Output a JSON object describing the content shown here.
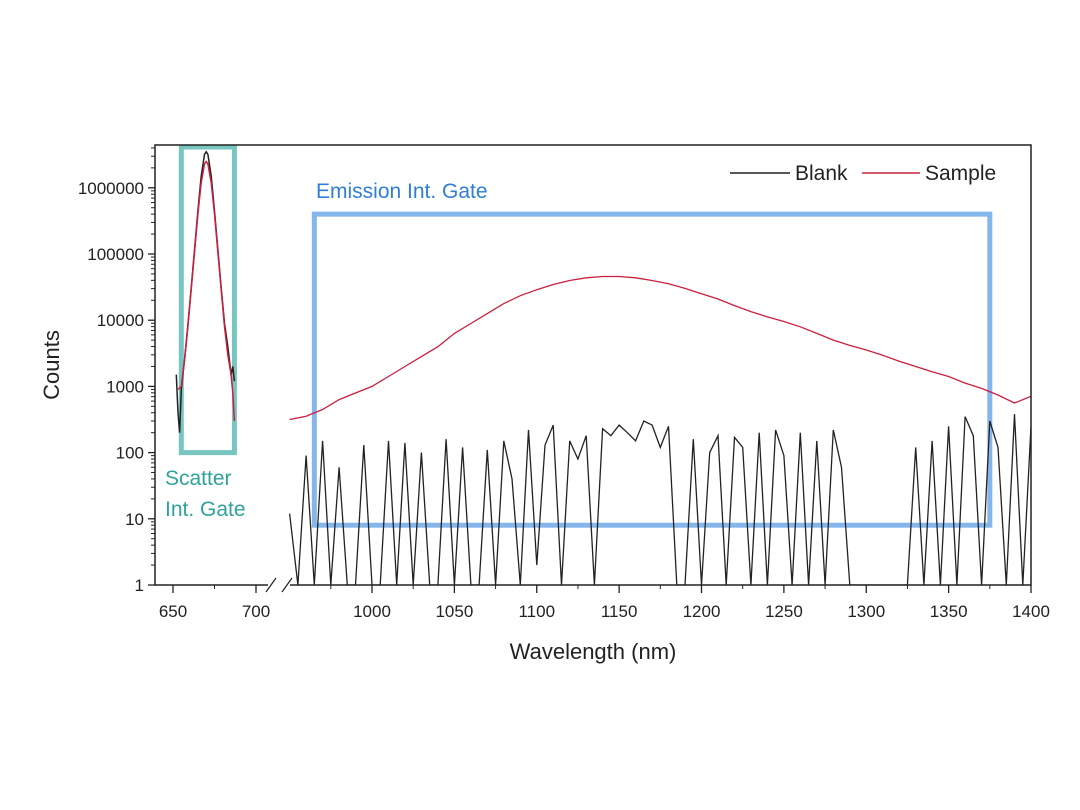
{
  "chart_data": {
    "type": "line",
    "title": "",
    "xlabel": "Wavelength (nm)",
    "ylabel": "Counts",
    "yscale": "log",
    "ylim": [
      1,
      4400000
    ],
    "x_segments": [
      [
        639,
        711
      ],
      [
        949,
        1400
      ]
    ],
    "x_ticks_left": [
      "650",
      "700"
    ],
    "x_ticks_right": [
      "1000",
      "1050",
      "1100",
      "1150",
      "1200",
      "1250",
      "1300",
      "1350",
      "1400"
    ],
    "y_ticks": [
      "1",
      "10",
      "100",
      "1000",
      "10000",
      "100000",
      "1000000"
    ],
    "legend": {
      "placement": "top-right",
      "entries": [
        "Blank",
        "Sample"
      ]
    },
    "colors": {
      "Blank": "#222222",
      "Sample": "#cc1f3f",
      "scatter_gate": "#5fbcb4",
      "emission_gate": "#5b9ee6",
      "scatter_text": "#2fa39a",
      "emission_text": "#2f7fd6"
    },
    "annotations": [
      {
        "label_lines": [
          "Scatter",
          "Int. Gate"
        ],
        "x_range": [
          655,
          687
        ],
        "y_range": [
          100,
          4400000
        ]
      },
      {
        "label_lines": [
          "Emission Int. Gate"
        ],
        "x_range": [
          965,
          1375
        ],
        "y_range": [
          8,
          400000
        ]
      }
    ],
    "series": [
      {
        "name": "Blank",
        "scatter_x": [
          652,
          653,
          654,
          655,
          657,
          659,
          661,
          663,
          665,
          667,
          669,
          670,
          671,
          673,
          675,
          677,
          679,
          681,
          683,
          684,
          685,
          686,
          687
        ],
        "scatter_y": [
          1500,
          400,
          200,
          900,
          2600,
          8500,
          32000,
          120000,
          450000,
          1500000,
          3200000,
          3500000,
          3200000,
          1500000,
          450000,
          120000,
          32000,
          9000,
          4000,
          2500,
          1500,
          2000,
          1200
        ],
        "emission_x_start": 950,
        "emission_x_step": 5,
        "emission_y": [
          12,
          1,
          90,
          1,
          150,
          1,
          60,
          1,
          1,
          130,
          1,
          1,
          150,
          1,
          140,
          1,
          100,
          1,
          1,
          160,
          1,
          120,
          1,
          1,
          110,
          1,
          150,
          40,
          1,
          220,
          2,
          130,
          260,
          1,
          150,
          80,
          180,
          1,
          230,
          180,
          260,
          200,
          150,
          300,
          260,
          120,
          250,
          1,
          1,
          160,
          1,
          100,
          180,
          1,
          170,
          120,
          1,
          200,
          1,
          220,
          90,
          1,
          200,
          1,
          150,
          1,
          220,
          60,
          1,
          1,
          1,
          1,
          1,
          1,
          1,
          1,
          120,
          1,
          150,
          1,
          250,
          1,
          350,
          180,
          1,
          300,
          120,
          1,
          380,
          1,
          250
        ],
        "note": ""
      },
      {
        "name": "Sample",
        "scatter_x": [
          653,
          655,
          657,
          659,
          661,
          663,
          665,
          667,
          669,
          670,
          671,
          673,
          675,
          677,
          679,
          681,
          683,
          685,
          686,
          687
        ],
        "scatter_y": [
          900,
          1000,
          2500,
          8000,
          30000,
          110000,
          400000,
          1200000,
          2300000,
          2500000,
          2300000,
          1200000,
          400000,
          110000,
          30000,
          8000,
          3000,
          1500,
          800,
          300
        ],
        "emission_x_start": 950,
        "emission_x_step": 10,
        "emission_y": [
          316,
          355,
          447,
          631,
          794,
          1000,
          1413,
          1995,
          2818,
          3981,
          6310,
          8913,
          12589,
          17783,
          23442,
          28840,
          34674,
          39811,
          43652,
          45709,
          45709,
          43652,
          39811,
          35481,
          30200,
          25119,
          20893,
          16596,
          13490,
          11220,
          9550,
          7943,
          6310,
          5012,
          4169,
          3548,
          2951,
          2399,
          1995,
          1660,
          1413,
          1122,
          933,
          741,
          562,
          708
        ]
      }
    ]
  }
}
